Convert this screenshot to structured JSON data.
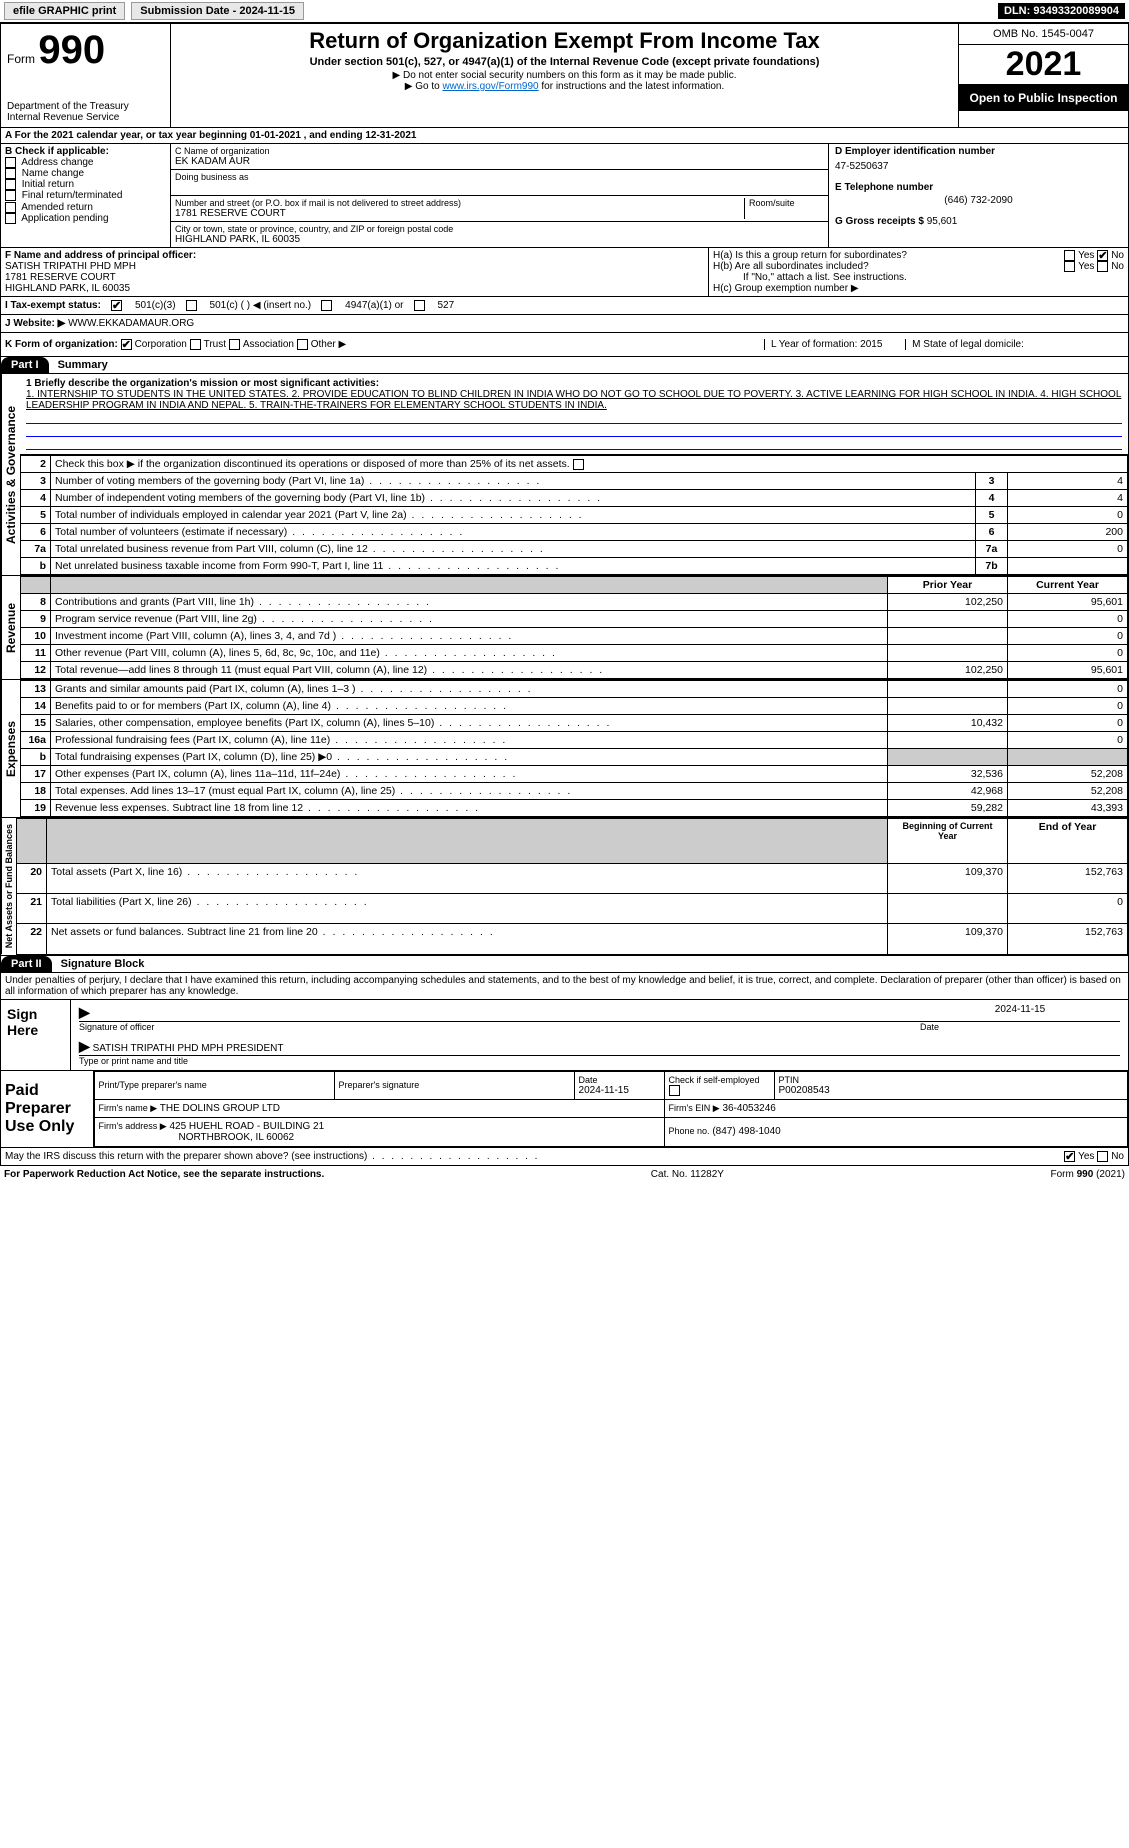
{
  "topbar": {
    "efile": "efile GRAPHIC print",
    "submission_label": "Submission Date - ",
    "submission_date": "2024-11-15",
    "dln_label": "DLN: ",
    "dln": "93493320089904"
  },
  "header": {
    "form_label": "Form",
    "form_number": "990",
    "dept": "Department of the Treasury",
    "irs": "Internal Revenue Service",
    "title": "Return of Organization Exempt From Income Tax",
    "subtitle": "Under section 501(c), 527, or 4947(a)(1) of the Internal Revenue Code (except private foundations)",
    "note1": "▶ Do not enter social security numbers on this form as it may be made public.",
    "note2_pre": "▶ Go to ",
    "note2_link": "www.irs.gov/Form990",
    "note2_post": " for instructions and the latest information.",
    "omb": "OMB No. 1545-0047",
    "year": "2021",
    "openpub": "Open to Public Inspection"
  },
  "periodA": {
    "text_pre": "For the 2021 calendar year, or tax year beginning ",
    "begin": "01-01-2021",
    "mid": " , and ending ",
    "end": "12-31-2021"
  },
  "boxB": {
    "label": "B Check if applicable:",
    "items": [
      "Address change",
      "Name change",
      "Initial return",
      "Final return/terminated",
      "Amended return",
      "Application pending"
    ]
  },
  "boxC": {
    "name_label": "C Name of organization",
    "name": "EK KADAM AUR",
    "dba_label": "Doing business as",
    "dba": "",
    "street_label": "Number and street (or P.O. box if mail is not delivered to street address)",
    "room_label": "Room/suite",
    "street": "1781 RESERVE COURT",
    "city_label": "City or town, state or province, country, and ZIP or foreign postal code",
    "city": "HIGHLAND PARK, IL  60035"
  },
  "boxD": {
    "label": "D Employer identification number",
    "value": "47-5250637"
  },
  "boxE": {
    "label": "E Telephone number",
    "value": "(646) 732-2090"
  },
  "boxG": {
    "label": "G Gross receipts $",
    "value": "95,601"
  },
  "boxF": {
    "label": "F  Name and address of principal officer:",
    "name": "SATISH TRIPATHI PHD MPH",
    "street": "1781 RESERVE COURT",
    "city": "HIGHLAND PARK, IL  60035"
  },
  "boxH": {
    "ha": "H(a)  Is this a group return for subordinates?",
    "hb": "H(b)  Are all subordinates included?",
    "hb_note": "If \"No,\" attach a list. See instructions.",
    "hc": "H(c)  Group exemption number ▶",
    "yes": "Yes",
    "no": "No"
  },
  "boxI": {
    "label": "I   Tax-exempt status:",
    "opts": [
      "501(c)(3)",
      "501(c) (  ) ◀ (insert no.)",
      "4947(a)(1) or",
      "527"
    ]
  },
  "boxJ": {
    "label": "J   Website: ▶",
    "value": "WWW.EKKADAMAUR.ORG"
  },
  "boxK": {
    "label": "K Form of organization:",
    "opts": [
      "Corporation",
      "Trust",
      "Association",
      "Other ▶"
    ],
    "L": "L Year of formation: 2015",
    "M": "M State of legal domicile:"
  },
  "part1": {
    "label": "Part I",
    "title": "Summary",
    "mission_label": "1  Briefly describe the organization's mission or most significant activities:",
    "mission": "1. INTERNSHIP TO STUDENTS IN THE UNITED STATES. 2. PROVIDE EDUCATION TO BLIND CHILDREN IN INDIA WHO DO NOT GO TO SCHOOL DUE TO POVERTY. 3. ACTIVE LEARNING FOR HIGH SCHOOL IN INDIA. 4. HIGH SCHOOL LEADERSHIP PROGRAM IN INDIA AND NEPAL. 5. TRAIN-THE-TRAINERS FOR ELEMENTARY SCHOOL STUDENTS IN INDIA.",
    "line2": "Check this box ▶        if the organization discontinued its operations or disposed of more than 25% of its net assets.",
    "rows_gov": [
      {
        "n": "3",
        "t": "Number of voting members of the governing body (Part VI, line 1a)",
        "r": "3",
        "v": "4"
      },
      {
        "n": "4",
        "t": "Number of independent voting members of the governing body (Part VI, line 1b)",
        "r": "4",
        "v": "4"
      },
      {
        "n": "5",
        "t": "Total number of individuals employed in calendar year 2021 (Part V, line 2a)",
        "r": "5",
        "v": "0"
      },
      {
        "n": "6",
        "t": "Total number of volunteers (estimate if necessary)",
        "r": "6",
        "v": "200"
      },
      {
        "n": "7a",
        "t": "Total unrelated business revenue from Part VIII, column (C), line 12",
        "r": "7a",
        "v": "0"
      },
      {
        "n": "b",
        "t": "Net unrelated business taxable income from Form 990-T, Part I, line 11",
        "r": "7b",
        "v": ""
      }
    ],
    "hdr_prior": "Prior Year",
    "hdr_curr": "Current Year",
    "rows_rev": [
      {
        "n": "8",
        "t": "Contributions and grants (Part VIII, line 1h)",
        "p": "102,250",
        "c": "95,601"
      },
      {
        "n": "9",
        "t": "Program service revenue (Part VIII, line 2g)",
        "p": "",
        "c": "0"
      },
      {
        "n": "10",
        "t": "Investment income (Part VIII, column (A), lines 3, 4, and 7d )",
        "p": "",
        "c": "0"
      },
      {
        "n": "11",
        "t": "Other revenue (Part VIII, column (A), lines 5, 6d, 8c, 9c, 10c, and 11e)",
        "p": "",
        "c": "0"
      },
      {
        "n": "12",
        "t": "Total revenue—add lines 8 through 11 (must equal Part VIII, column (A), line 12)",
        "p": "102,250",
        "c": "95,601"
      }
    ],
    "rows_exp": [
      {
        "n": "13",
        "t": "Grants and similar amounts paid (Part IX, column (A), lines 1–3 )",
        "p": "",
        "c": "0"
      },
      {
        "n": "14",
        "t": "Benefits paid to or for members (Part IX, column (A), line 4)",
        "p": "",
        "c": "0"
      },
      {
        "n": "15",
        "t": "Salaries, other compensation, employee benefits (Part IX, column (A), lines 5–10)",
        "p": "10,432",
        "c": "0"
      },
      {
        "n": "16a",
        "t": "Professional fundraising fees (Part IX, column (A), line 11e)",
        "p": "",
        "c": "0"
      },
      {
        "n": "b",
        "t": "Total fundraising expenses (Part IX, column (D), line 25) ▶0",
        "p": "GREY",
        "c": "GREY"
      },
      {
        "n": "17",
        "t": "Other expenses (Part IX, column (A), lines 11a–11d, 11f–24e)",
        "p": "32,536",
        "c": "52,208"
      },
      {
        "n": "18",
        "t": "Total expenses. Add lines 13–17 (must equal Part IX, column (A), line 25)",
        "p": "42,968",
        "c": "52,208"
      },
      {
        "n": "19",
        "t": "Revenue less expenses. Subtract line 18 from line 12",
        "p": "59,282",
        "c": "43,393"
      }
    ],
    "hdr_begin": "Beginning of Current Year",
    "hdr_end": "End of Year",
    "rows_net": [
      {
        "n": "20",
        "t": "Total assets (Part X, line 16)",
        "p": "109,370",
        "c": "152,763"
      },
      {
        "n": "21",
        "t": "Total liabilities (Part X, line 26)",
        "p": "",
        "c": "0"
      },
      {
        "n": "22",
        "t": "Net assets or fund balances. Subtract line 21 from line 20",
        "p": "109,370",
        "c": "152,763"
      }
    ],
    "vlab_gov": "Activities & Governance",
    "vlab_rev": "Revenue",
    "vlab_exp": "Expenses",
    "vlab_net": "Net Assets or Fund Balances"
  },
  "part2": {
    "label": "Part II",
    "title": "Signature Block",
    "perjury": "Under penalties of perjury, I declare that I have examined this return, including accompanying schedules and statements, and to the best of my knowledge and belief, it is true, correct, and complete. Declaration of preparer (other than officer) is based on all information of which preparer has any knowledge.",
    "sign_here": "Sign Here",
    "sig_officer": "Signature of officer",
    "sig_date": "2024-11-15",
    "date_lbl": "Date",
    "type_name": "SATISH TRIPATHI PHD MPH  PRESIDENT",
    "type_lbl": "Type or print name and title",
    "paid_lbl": "Paid Preparer Use Only",
    "pp": {
      "h1": "Print/Type preparer's name",
      "h2": "Preparer's signature",
      "h3": "Date",
      "h3v": "2024-11-15",
      "h4": "Check        if self-employed",
      "h5": "PTIN",
      "h5v": "P00208543",
      "firm_name_lbl": "Firm's name     ▶",
      "firm_name": "THE DOLINS GROUP LTD",
      "firm_ein_lbl": "Firm's EIN ▶",
      "firm_ein": "36-4053246",
      "firm_addr_lbl": "Firm's address ▶",
      "firm_addr1": "425 HUEHL ROAD - BUILDING 21",
      "firm_addr2": "NORTHBROOK, IL  60062",
      "phone_lbl": "Phone no.",
      "phone": "(847) 498-1040"
    },
    "may_discuss": "May the IRS discuss this return with the preparer shown above? (see instructions)",
    "yes": "Yes",
    "no": "No"
  },
  "footer": {
    "left": "For Paperwork Reduction Act Notice, see the separate instructions.",
    "mid": "Cat. No. 11282Y",
    "right": "Form 990 (2021)"
  },
  "colors": {
    "link": "#0066cc",
    "black": "#000000",
    "grey": "#cccccc"
  }
}
